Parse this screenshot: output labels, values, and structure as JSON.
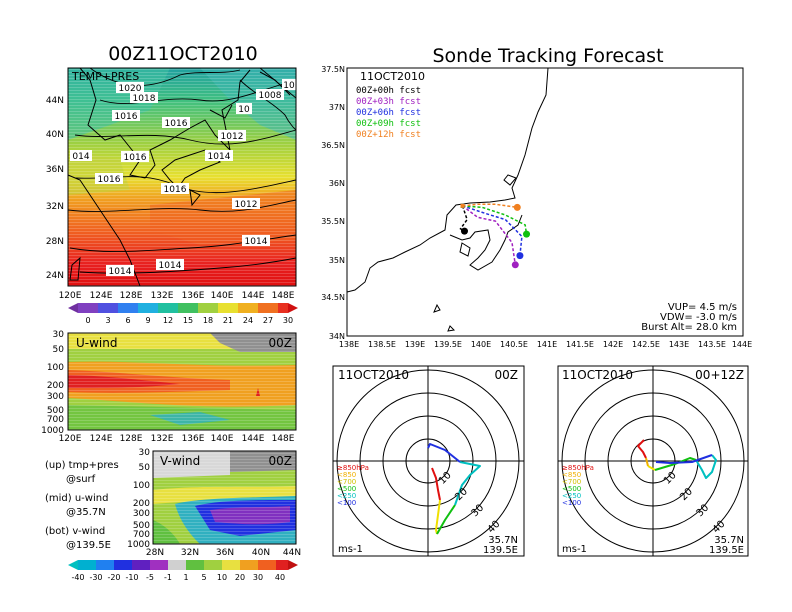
{
  "colors": {
    "accent": "#000000"
  },
  "left_title": "00Z11OCT2010",
  "main_title": "Sonde Tracking Forecast",
  "map_left": {
    "label": "TEMP+PRES",
    "lon_ticks": [
      "120E",
      "124E",
      "128E",
      "132E",
      "136E",
      "140E",
      "144E",
      "148E"
    ],
    "lat_ticks": [
      "44N",
      "40N",
      "36N",
      "32N",
      "28N",
      "24N"
    ],
    "isobar_labels": [
      "1020",
      "1018",
      "1016",
      "1016",
      "1016",
      "1016",
      "1016",
      "1014",
      "1014",
      "1014",
      "1014",
      "1012",
      "1012",
      "1008",
      "10",
      "10",
      "014"
    ]
  },
  "temp_colorbar": {
    "labels": [
      "0",
      "3",
      "6",
      "9",
      "12",
      "15",
      "18",
      "21",
      "24",
      "27",
      "30"
    ]
  },
  "uwind": {
    "label": "U-wind",
    "time": "00Z",
    "p_ticks": [
      "30",
      "50",
      "100",
      "200",
      "300",
      "500",
      "700",
      "1000"
    ],
    "lon_ticks": [
      "120E",
      "124E",
      "128E",
      "132E",
      "136E",
      "140E",
      "144E",
      "148E"
    ]
  },
  "vwind": {
    "label": "V-wind",
    "time": "00Z",
    "p_ticks": [
      "30",
      "50",
      "100",
      "200",
      "300",
      "500",
      "700",
      "1000"
    ],
    "lat_ticks": [
      "28N",
      "32N",
      "36N",
      "40N",
      "44N"
    ]
  },
  "notes": [
    "(up) tmp+pres",
    "@surf",
    "(mid) u-wind",
    "@35.7N",
    "(bot) v-wind",
    "@139.5E"
  ],
  "wind_colorbar": {
    "labels": [
      "-40",
      "-30",
      "-20",
      "-10",
      "-5",
      "-1",
      "1",
      "5",
      "10",
      "20",
      "30",
      "40"
    ]
  },
  "track": {
    "date": "11OCT2010",
    "legend": [
      {
        "text": "00Z+00h fcst",
        "color": "#000000"
      },
      {
        "text": "00Z+03h fcst",
        "color": "#a020c0"
      },
      {
        "text": "00Z+06h fcst",
        "color": "#2030e0"
      },
      {
        "text": "00Z+09h fcst",
        "color": "#10c010"
      },
      {
        "text": "00Z+12h fcst",
        "color": "#f08020"
      }
    ],
    "info": [
      "VUP= 4.5 m/s",
      "VDW= -3.0 m/s",
      "Burst Alt= 28.0 km"
    ],
    "lon_ticks": [
      "138E",
      "138.5E",
      "139E",
      "139.5E",
      "140E",
      "140.5E",
      "141E",
      "141.5E",
      "142E",
      "142.5E",
      "143E",
      "143.5E",
      "144E"
    ],
    "lat_ticks": [
      "37.5N",
      "37N",
      "36.5N",
      "36N",
      "35.5N",
      "35N",
      "34.5N",
      "34N"
    ]
  },
  "chart_data": [
    {
      "type": "line",
      "title": "Sonde Tracking Forecast",
      "xlim": [
        138,
        144
      ],
      "ylim": [
        34,
        37.5
      ],
      "series": [
        {
          "name": "00Z+00h fcst",
          "points": [
            [
              139.75,
              35.7
            ],
            [
              139.82,
              35.52
            ],
            [
              139.72,
              35.4
            ],
            [
              139.78,
              35.37
            ]
          ]
        },
        {
          "name": "00Z+03h fcst",
          "points": [
            [
              139.75,
              35.7
            ],
            [
              139.98,
              35.55
            ],
            [
              140.25,
              35.5
            ],
            [
              140.5,
              35.22
            ],
            [
              140.55,
              34.93
            ]
          ]
        },
        {
          "name": "00Z+06h fcst",
          "points": [
            [
              139.75,
              35.7
            ],
            [
              140.1,
              35.6
            ],
            [
              140.4,
              35.52
            ],
            [
              140.65,
              35.3
            ],
            [
              140.62,
              35.05
            ]
          ]
        },
        {
          "name": "00Z+09h fcst",
          "points": [
            [
              139.75,
              35.7
            ],
            [
              140.05,
              35.68
            ],
            [
              140.4,
              35.58
            ],
            [
              140.7,
              35.45
            ],
            [
              140.72,
              35.33
            ]
          ]
        },
        {
          "name": "00Z+12h fcst",
          "points": [
            [
              139.75,
              35.7
            ],
            [
              139.98,
              35.72
            ],
            [
              140.25,
              35.72
            ],
            [
              140.58,
              35.68
            ]
          ]
        }
      ]
    }
  ],
  "hodo_left": {
    "date": "11OCT2010",
    "time": "00Z",
    "unit": "ms-1",
    "lat": "35.7N",
    "lon": "139.5E",
    "rings": [
      "10",
      "20",
      "30",
      "40"
    ],
    "levels": [
      {
        "text": "≥850hPa",
        "color": "#e01010"
      },
      {
        "text": "<850",
        "color": "#f0b000"
      },
      {
        "text": "<700",
        "color": "#f0e000"
      },
      {
        "text": "<500",
        "color": "#10c010"
      },
      {
        "text": "<250",
        "color": "#00c0c0"
      },
      {
        "text": "<100",
        "color": "#2030e0"
      }
    ]
  },
  "hodo_right": {
    "date": "11OCT2010",
    "time": "00+12Z",
    "unit": "ms-1",
    "lat": "35.7N",
    "lon": "139.5E",
    "rings": [
      "10",
      "20",
      "30",
      "40"
    ],
    "levels": [
      {
        "text": "≥850hPa",
        "color": "#e01010"
      },
      {
        "text": "<850",
        "color": "#f0b000"
      },
      {
        "text": "<700",
        "color": "#f0e000"
      },
      {
        "text": "<500",
        "color": "#10c010"
      },
      {
        "text": "<250",
        "color": "#00c0c0"
      },
      {
        "text": "<100",
        "color": "#2030e0"
      }
    ]
  }
}
